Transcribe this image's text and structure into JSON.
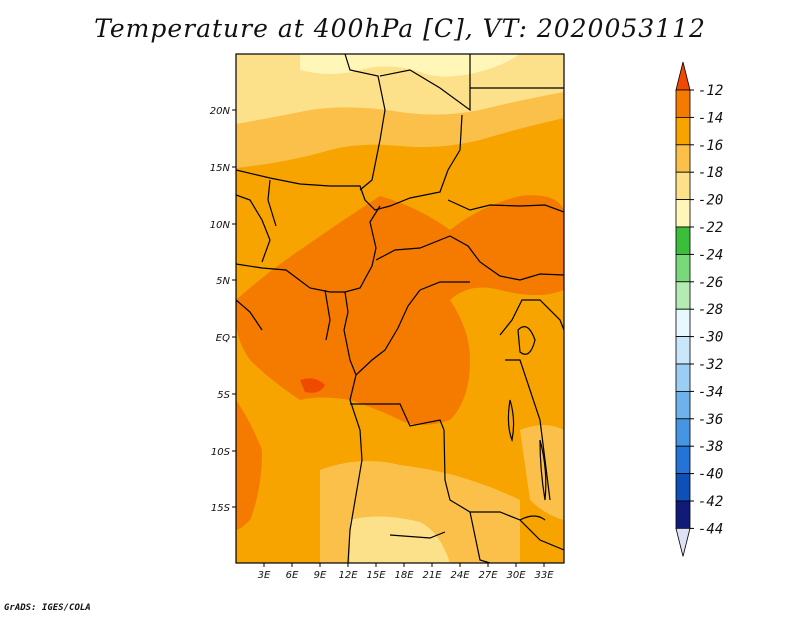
{
  "title": "Temperature at 400hPa [C], VT: 2020053112",
  "credit": "GrADS: IGES/COLA",
  "lat_labels": [
    "20N",
    "15N",
    "10N",
    "5N",
    "EQ",
    "5S",
    "10S",
    "15S"
  ],
  "lon_labels": [
    "3E",
    "6E",
    "9E",
    "12E",
    "15E",
    "18E",
    "21E",
    "24E",
    "27E",
    "30E",
    "33E"
  ],
  "colorbar": {
    "labels": [
      "-12",
      "-14",
      "-16",
      "-18",
      "-20",
      "-22",
      "-24",
      "-26",
      "-28",
      "-30",
      "-32",
      "-34",
      "-36",
      "-38",
      "-40",
      "-42",
      "-44"
    ],
    "colors": [
      "#f04a00",
      "#f47a00",
      "#f7a400",
      "#fbc04a",
      "#fde08a",
      "#fff6b8",
      "#3bbf3b",
      "#78d87a",
      "#b4ebb2",
      "#e8f8ff",
      "#c9e6fb",
      "#9ccdf4",
      "#6eb2ec",
      "#4595e2",
      "#2374d6",
      "#0f4fb8",
      "#101a78",
      "#dfe1f6"
    ]
  },
  "field_colors": {
    "c14": "#f47a00",
    "c16": "#f7a400",
    "c18": "#fbc04a",
    "c20": "#fde08a",
    "c22": "#fff6b8",
    "c12": "#f04a00"
  }
}
